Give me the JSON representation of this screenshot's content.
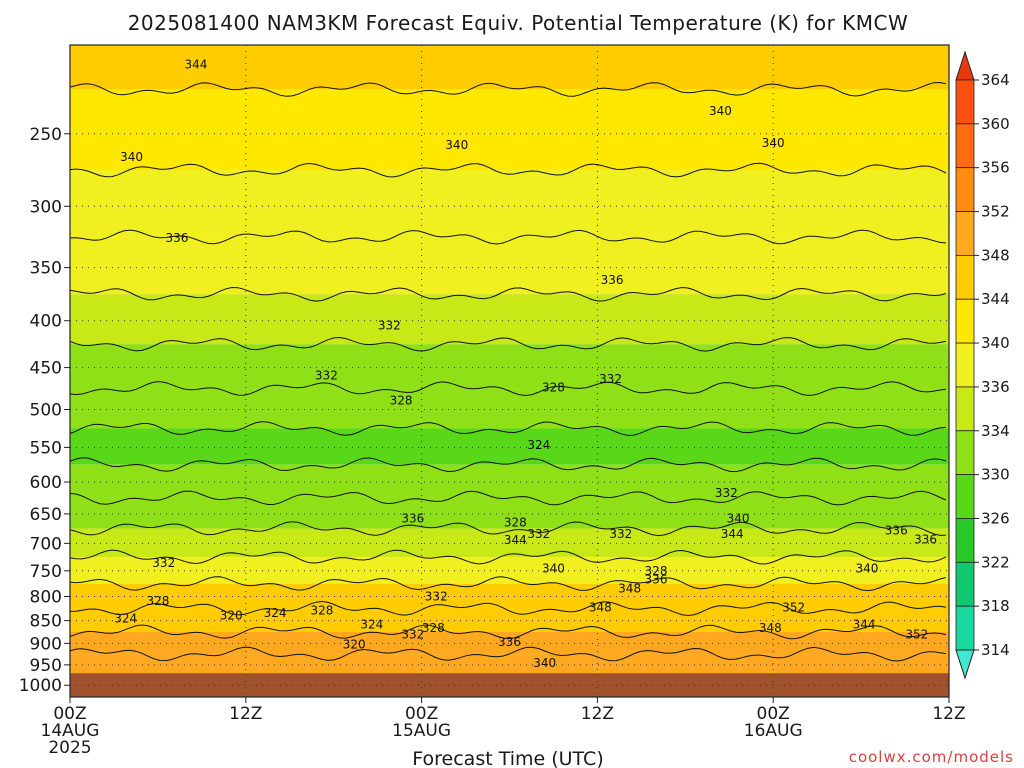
{
  "chart_data": {
    "type": "heatmap",
    "title": "2025081400 NAM3KM Forecast Equiv. Potential Temperature (K) for KMCW",
    "xlabel": "Forecast Time (UTC)",
    "ylabel": "",
    "y_ticks": [
      250,
      300,
      350,
      400,
      450,
      500,
      550,
      600,
      650,
      700,
      750,
      800,
      850,
      900,
      950,
      1000
    ],
    "y_scale": "log-pressure",
    "y_range": [
      200,
      1030
    ],
    "x_range_hours": [
      0,
      60
    ],
    "x_ticks": [
      {
        "hour": 0,
        "lines": [
          "00Z",
          "14AUG",
          "2025"
        ]
      },
      {
        "hour": 12,
        "lines": [
          "12Z"
        ]
      },
      {
        "hour": 24,
        "lines": [
          "00Z",
          "15AUG"
        ]
      },
      {
        "hour": 36,
        "lines": [
          "12Z"
        ]
      },
      {
        "hour": 48,
        "lines": [
          "00Z",
          "16AUG"
        ]
      },
      {
        "hour": 60,
        "lines": [
          "12Z"
        ]
      }
    ],
    "grid": true,
    "surface_pressure": 970,
    "colorbar": {
      "levels": [
        314,
        318,
        322,
        326,
        330,
        334,
        336,
        340,
        344,
        348,
        352,
        356,
        360,
        364
      ],
      "colors": [
        "#40e8d0",
        "#18d8a0",
        "#10c870",
        "#28c828",
        "#58d818",
        "#90e018",
        "#c8e818",
        "#f0f020",
        "#ffe800",
        "#ffcc00",
        "#ffa820",
        "#ff8c10",
        "#ff6c10",
        "#ff5010",
        "#e83810"
      ]
    },
    "profile_levels": [
      {
        "pressure": 200,
        "theta_e": 345
      },
      {
        "pressure": 250,
        "theta_e": 341
      },
      {
        "pressure": 300,
        "theta_e": 338
      },
      {
        "pressure": 350,
        "theta_e": 336
      },
      {
        "pressure": 400,
        "theta_e": 334
      },
      {
        "pressure": 450,
        "theta_e": 332
      },
      {
        "pressure": 500,
        "theta_e": 330
      },
      {
        "pressure": 550,
        "theta_e": 329
      },
      {
        "pressure": 600,
        "theta_e": 331
      },
      {
        "pressure": 650,
        "theta_e": 332
      },
      {
        "pressure": 700,
        "theta_e": 334
      },
      {
        "pressure": 750,
        "theta_e": 338
      },
      {
        "pressure": 800,
        "theta_e": 344
      },
      {
        "pressure": 850,
        "theta_e": 346
      },
      {
        "pressure": 900,
        "theta_e": 348
      },
      {
        "pressure": 950,
        "theta_e": 350
      }
    ],
    "contour_labels": [
      {
        "text": "344",
        "hour": 8.6,
        "pressure": 210
      },
      {
        "text": "340",
        "hour": 4.2,
        "pressure": 265
      },
      {
        "text": "340",
        "hour": 26.4,
        "pressure": 257
      },
      {
        "text": "340",
        "hour": 44.4,
        "pressure": 236
      },
      {
        "text": "340",
        "hour": 48.0,
        "pressure": 256
      },
      {
        "text": "336",
        "hour": 7.3,
        "pressure": 325
      },
      {
        "text": "336",
        "hour": 37.0,
        "pressure": 361
      },
      {
        "text": "332",
        "hour": 21.8,
        "pressure": 405
      },
      {
        "text": "332",
        "hour": 17.5,
        "pressure": 459
      },
      {
        "text": "332",
        "hour": 36.9,
        "pressure": 463
      },
      {
        "text": "328",
        "hour": 22.6,
        "pressure": 489
      },
      {
        "text": "328",
        "hour": 33.0,
        "pressure": 473
      },
      {
        "text": "324",
        "hour": 32.0,
        "pressure": 547
      },
      {
        "text": "332",
        "hour": 44.8,
        "pressure": 617
      },
      {
        "text": "340",
        "hour": 45.6,
        "pressure": 658
      },
      {
        "text": "336",
        "hour": 23.4,
        "pressure": 658
      },
      {
        "text": "328",
        "hour": 30.4,
        "pressure": 664
      },
      {
        "text": "344",
        "hour": 30.4,
        "pressure": 694
      },
      {
        "text": "332",
        "hour": 32.0,
        "pressure": 684
      },
      {
        "text": "332",
        "hour": 37.6,
        "pressure": 684
      },
      {
        "text": "344",
        "hour": 45.2,
        "pressure": 684
      },
      {
        "text": "336",
        "hour": 56.4,
        "pressure": 678
      },
      {
        "text": "336",
        "hour": 58.4,
        "pressure": 693
      },
      {
        "text": "332",
        "hour": 6.4,
        "pressure": 735
      },
      {
        "text": "340",
        "hour": 33.0,
        "pressure": 746
      },
      {
        "text": "328",
        "hour": 40.0,
        "pressure": 750
      },
      {
        "text": "336",
        "hour": 40.0,
        "pressure": 767
      },
      {
        "text": "340",
        "hour": 54.4,
        "pressure": 746
      },
      {
        "text": "348",
        "hour": 38.2,
        "pressure": 784
      },
      {
        "text": "328",
        "hour": 6.0,
        "pressure": 809
      },
      {
        "text": "332",
        "hour": 25.0,
        "pressure": 800
      },
      {
        "text": "348",
        "hour": 36.2,
        "pressure": 822
      },
      {
        "text": "352",
        "hour": 49.4,
        "pressure": 822
      },
      {
        "text": "324",
        "hour": 3.8,
        "pressure": 846
      },
      {
        "text": "320",
        "hour": 11.0,
        "pressure": 839
      },
      {
        "text": "324",
        "hour": 14.0,
        "pressure": 834
      },
      {
        "text": "328",
        "hour": 17.2,
        "pressure": 829
      },
      {
        "text": "324",
        "hour": 20.6,
        "pressure": 858
      },
      {
        "text": "328",
        "hour": 24.8,
        "pressure": 866
      },
      {
        "text": "332",
        "hour": 23.4,
        "pressure": 880
      },
      {
        "text": "348",
        "hour": 47.8,
        "pressure": 866
      },
      {
        "text": "344",
        "hour": 54.2,
        "pressure": 858
      },
      {
        "text": "352",
        "hour": 57.8,
        "pressure": 880
      },
      {
        "text": "320",
        "hour": 19.4,
        "pressure": 903
      },
      {
        "text": "336",
        "hour": 30.0,
        "pressure": 897
      },
      {
        "text": "340",
        "hour": 32.4,
        "pressure": 946
      }
    ]
  },
  "credit": "coolwx.com/models"
}
